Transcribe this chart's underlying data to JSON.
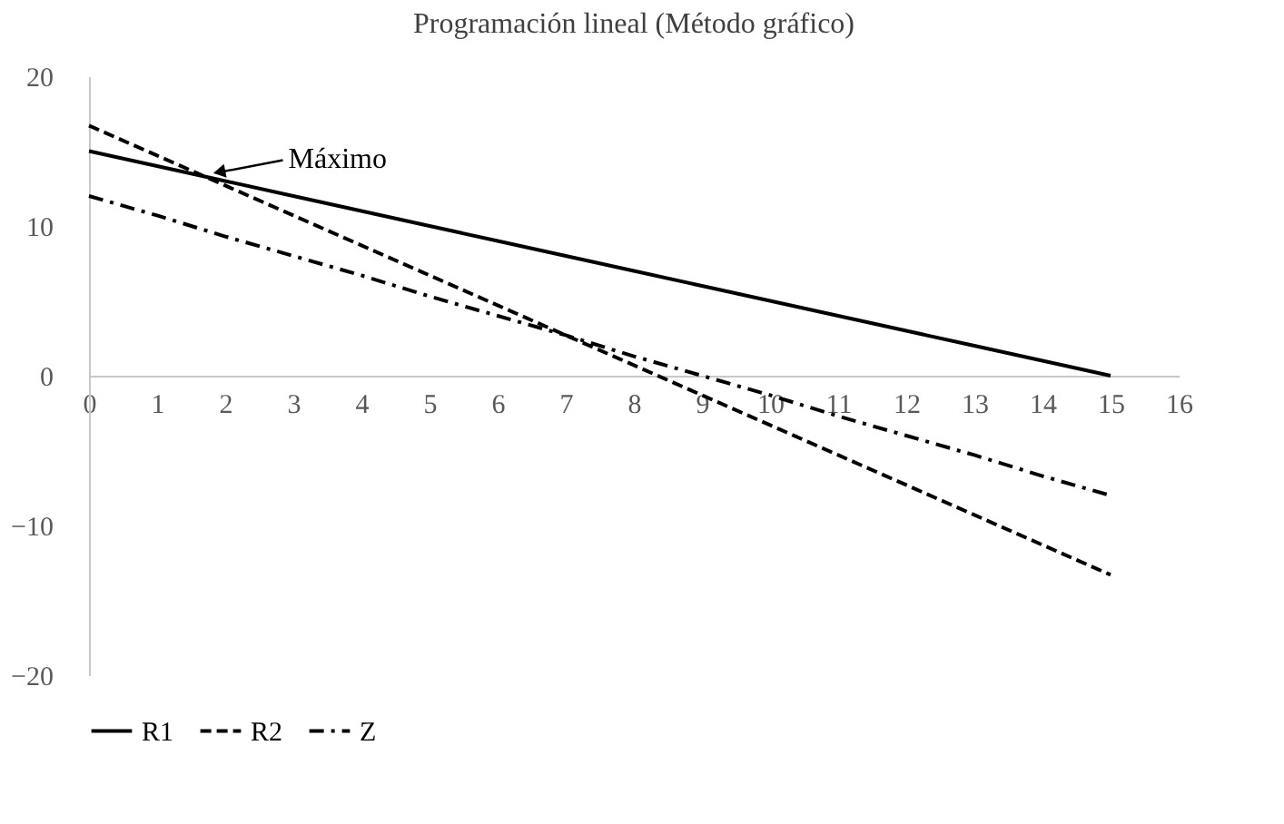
{
  "chart_data": {
    "type": "line",
    "title": "Programación lineal (Método gráfico)",
    "x": [
      0,
      1,
      2,
      3,
      4,
      5,
      6,
      7,
      8,
      9,
      10,
      11,
      12,
      13,
      14,
      15
    ],
    "series": [
      {
        "name": "R1",
        "color": "#000000",
        "line_style": "solid",
        "values": [
          15,
          14,
          13,
          12,
          11,
          10,
          9,
          8,
          7,
          6,
          5,
          4,
          3,
          2,
          1,
          0
        ]
      },
      {
        "name": "R2",
        "color": "#000000",
        "line_style": "dashed",
        "values": [
          16.7,
          14.7,
          12.7,
          10.7,
          8.7,
          6.7,
          4.7,
          2.7,
          0.7,
          -1.3,
          -3.3,
          -5.3,
          -7.3,
          -9.3,
          -11.3,
          -13.3
        ]
      },
      {
        "name": "Z",
        "color": "#000000",
        "line_style": "dashdot",
        "values": [
          12,
          10.7,
          9.3,
          8,
          6.7,
          5.3,
          4,
          2.7,
          1.3,
          0,
          -1.3,
          -2.7,
          -4,
          -5.3,
          -6.7,
          -8
        ]
      }
    ],
    "xlim": [
      0,
      16
    ],
    "xticks": [
      0,
      1,
      2,
      3,
      4,
      5,
      6,
      7,
      8,
      9,
      10,
      11,
      12,
      13,
      14,
      15,
      16
    ],
    "ylim": [
      -20,
      20
    ],
    "yticks": [
      -20,
      -10,
      0,
      10,
      20
    ],
    "annotations": [
      {
        "text": "Máximo",
        "x": 1.7,
        "y": 13.3
      }
    ],
    "grid": false,
    "legend": "bottom",
    "marker": "none"
  }
}
